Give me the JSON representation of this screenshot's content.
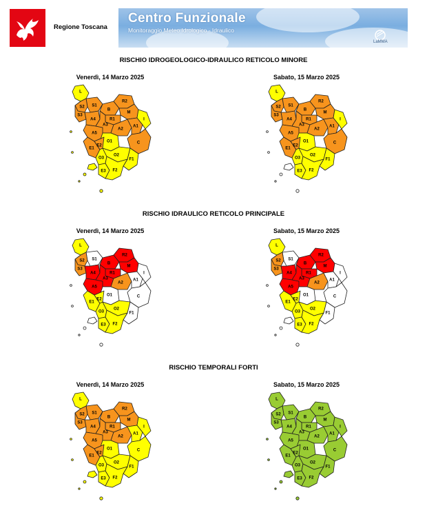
{
  "header": {
    "region_name": "Regione Toscana",
    "banner_title": "Centro Funzionale",
    "banner_subtitle": "Monitoraggio Meteo Idrologico - Idraulico",
    "partner_logo_text": "LaMMA"
  },
  "risk_colors": {
    "green": "#99cc33",
    "yellow": "#ffff00",
    "orange": "#f7941d",
    "red": "#ff0000",
    "white": "#ffffff"
  },
  "zone_labels": [
    "L",
    "S1",
    "S2",
    "S3",
    "B",
    "R2",
    "M",
    "R1",
    "A4",
    "A5",
    "A3",
    "A2",
    "A1",
    "I",
    "E1",
    "O1",
    "C",
    "E2",
    "O3",
    "O2",
    "F1",
    "E3",
    "F2"
  ],
  "sections": [
    {
      "title": "RISCHIO IDROGEOLOGICO-IDRAULICO RETICOLO MINORE",
      "maps": [
        {
          "date": "Venerdì, 14 Marzo 2025",
          "zones": {
            "L": "yellow",
            "S1": "orange",
            "S2": "orange",
            "S3": "orange",
            "B": "orange",
            "R2": "orange",
            "M": "orange",
            "R1": "orange",
            "A4": "orange",
            "A5": "orange",
            "A3": "orange",
            "A2": "orange",
            "A1": "orange",
            "I": "yellow",
            "E1": "orange",
            "O1": "yellow",
            "C": "orange",
            "E2": "orange",
            "O3": "yellow",
            "O2": "yellow",
            "F1": "yellow",
            "E3": "yellow",
            "F2": "yellow"
          },
          "islands": "yellow"
        },
        {
          "date": "Sabato, 15 Marzo 2025",
          "zones": {
            "L": "yellow",
            "S1": "orange",
            "S2": "orange",
            "S3": "orange",
            "B": "orange",
            "R2": "orange",
            "M": "orange",
            "R1": "orange",
            "A4": "orange",
            "A5": "orange",
            "A3": "orange",
            "A2": "orange",
            "A1": "orange",
            "I": "yellow",
            "E1": "orange",
            "O1": "yellow",
            "C": "orange",
            "E2": "orange",
            "O3": "yellow",
            "O2": "yellow",
            "F1": "yellow",
            "E3": "yellow",
            "F2": "yellow"
          },
          "islands": "white"
        }
      ]
    },
    {
      "title": "RISCHIO IDRAULICO RETICOLO PRINCIPALE",
      "maps": [
        {
          "date": "Venerdì, 14 Marzo 2025",
          "zones": {
            "L": "yellow",
            "S1": "white",
            "S2": "orange",
            "S3": "orange",
            "B": "red",
            "R2": "red",
            "M": "red",
            "R1": "red",
            "A4": "red",
            "A5": "red",
            "A3": "red",
            "A2": "orange",
            "A1": "white",
            "I": "white",
            "E1": "yellow",
            "O1": "white",
            "C": "white",
            "E2": "yellow",
            "O3": "yellow",
            "O2": "yellow",
            "F1": "white",
            "E3": "yellow",
            "F2": "yellow"
          },
          "islands": "white"
        },
        {
          "date": "Sabato, 15 Marzo 2025",
          "zones": {
            "L": "yellow",
            "S1": "white",
            "S2": "orange",
            "S3": "orange",
            "B": "red",
            "R2": "red",
            "M": "red",
            "R1": "red",
            "A4": "red",
            "A5": "red",
            "A3": "red",
            "A2": "orange",
            "A1": "white",
            "I": "white",
            "E1": "yellow",
            "O1": "white",
            "C": "white",
            "E2": "yellow",
            "O3": "yellow",
            "O2": "yellow",
            "F1": "white",
            "E3": "yellow",
            "F2": "yellow"
          },
          "islands": "white"
        }
      ]
    },
    {
      "title": "RISCHIO TEMPORALI FORTI",
      "maps": [
        {
          "date": "Venerdì, 14 Marzo 2025",
          "zones": {
            "L": "yellow",
            "S1": "orange",
            "S2": "orange",
            "S3": "orange",
            "B": "orange",
            "R2": "orange",
            "M": "orange",
            "R1": "orange",
            "A4": "orange",
            "A5": "orange",
            "A3": "orange",
            "A2": "orange",
            "A1": "yellow",
            "I": "yellow",
            "E1": "orange",
            "O1": "yellow",
            "C": "yellow",
            "E2": "orange",
            "O3": "yellow",
            "O2": "yellow",
            "F1": "yellow",
            "E3": "yellow",
            "F2": "yellow"
          },
          "islands": "yellow"
        },
        {
          "date": "Sabato, 15 Marzo 2025",
          "zones": {
            "L": "green",
            "S1": "green",
            "S2": "green",
            "S3": "green",
            "B": "green",
            "R2": "green",
            "M": "green",
            "R1": "green",
            "A4": "green",
            "A5": "green",
            "A3": "green",
            "A2": "green",
            "A1": "green",
            "I": "green",
            "E1": "green",
            "O1": "green",
            "C": "green",
            "E2": "green",
            "O3": "green",
            "O2": "green",
            "F1": "green",
            "E3": "green",
            "F2": "green"
          },
          "islands": "green"
        }
      ]
    }
  ]
}
